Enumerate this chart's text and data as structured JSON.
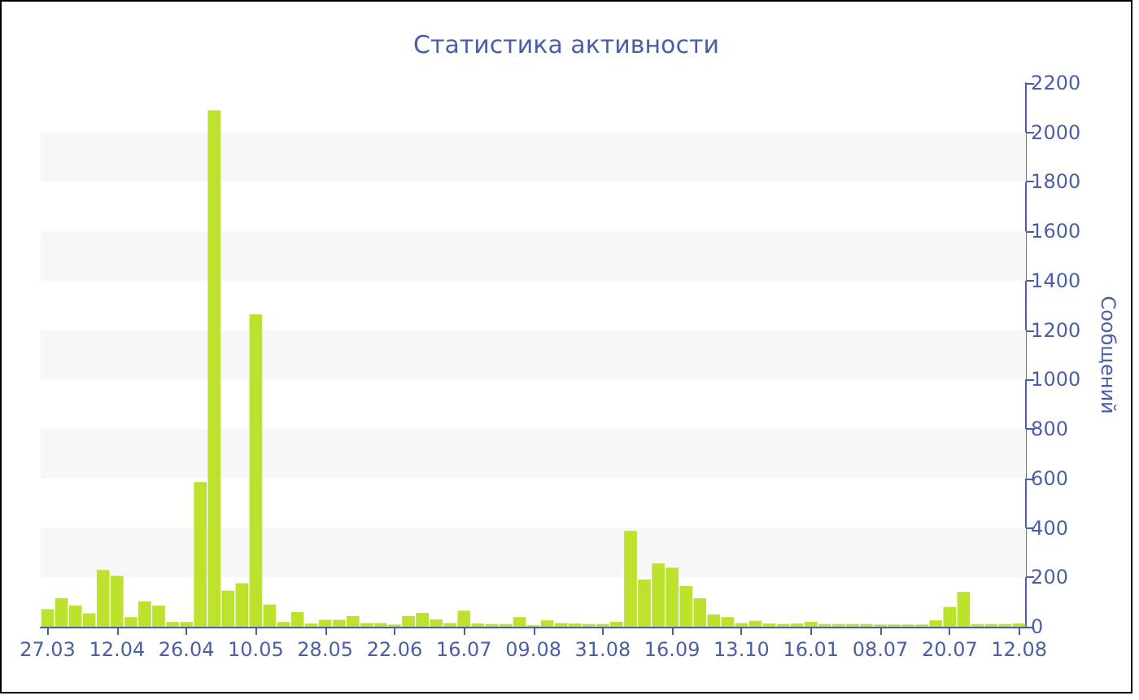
{
  "chart_data": {
    "type": "bar",
    "title": "Статистика активности",
    "ylabel": "Сообщений",
    "categories": [
      "27.03",
      null,
      null,
      null,
      null,
      "12.04",
      null,
      null,
      null,
      null,
      "26.04",
      null,
      null,
      null,
      null,
      "10.05",
      null,
      null,
      null,
      null,
      "28.05",
      null,
      null,
      null,
      null,
      "22.06",
      null,
      null,
      null,
      null,
      "16.07",
      null,
      null,
      null,
      null,
      "09.08",
      null,
      null,
      null,
      null,
      "31.08",
      null,
      null,
      null,
      null,
      "16.09",
      null,
      null,
      null,
      null,
      "13.10",
      null,
      null,
      null,
      null,
      "16.01",
      null,
      null,
      null,
      null,
      "08.07",
      null,
      null,
      null,
      null,
      "20.07",
      null,
      null,
      null,
      null,
      "12.08"
    ],
    "values": [
      71,
      116,
      86,
      54,
      230,
      206,
      39,
      103,
      86,
      19,
      19,
      585,
      2090,
      146,
      176,
      1264,
      90,
      19,
      60,
      13,
      28,
      28,
      43,
      15,
      15,
      9,
      43,
      56,
      30,
      15,
      65,
      13,
      11,
      11,
      39,
      6,
      26,
      15,
      13,
      11,
      11,
      20,
      388,
      191,
      256,
      239,
      165,
      115,
      50,
      39,
      15,
      24,
      13,
      11,
      13,
      20,
      11,
      11,
      11,
      11,
      9,
      9,
      9,
      9,
      26,
      80,
      141,
      11,
      11,
      11,
      13
    ],
    "color": "#bde22e",
    "ylim": [
      0,
      2200
    ],
    "yticks": [
      0,
      200,
      400,
      600,
      800,
      1000,
      1200,
      1400,
      1600,
      1800,
      2000,
      2200
    ],
    "bands": [
      {
        "axis": "y",
        "from": 200,
        "to": 400,
        "color": "#f7f7f7"
      },
      {
        "axis": "y",
        "from": 600,
        "to": 800,
        "color": "#f7f7f7"
      },
      {
        "axis": "y",
        "from": 1000,
        "to": 1200,
        "color": "#f7f7f7"
      },
      {
        "axis": "y",
        "from": 1400,
        "to": 1600,
        "color": "#f7f7f7"
      },
      {
        "axis": "y",
        "from": 1800,
        "to": 2000,
        "color": "#f7f7f7"
      }
    ]
  }
}
